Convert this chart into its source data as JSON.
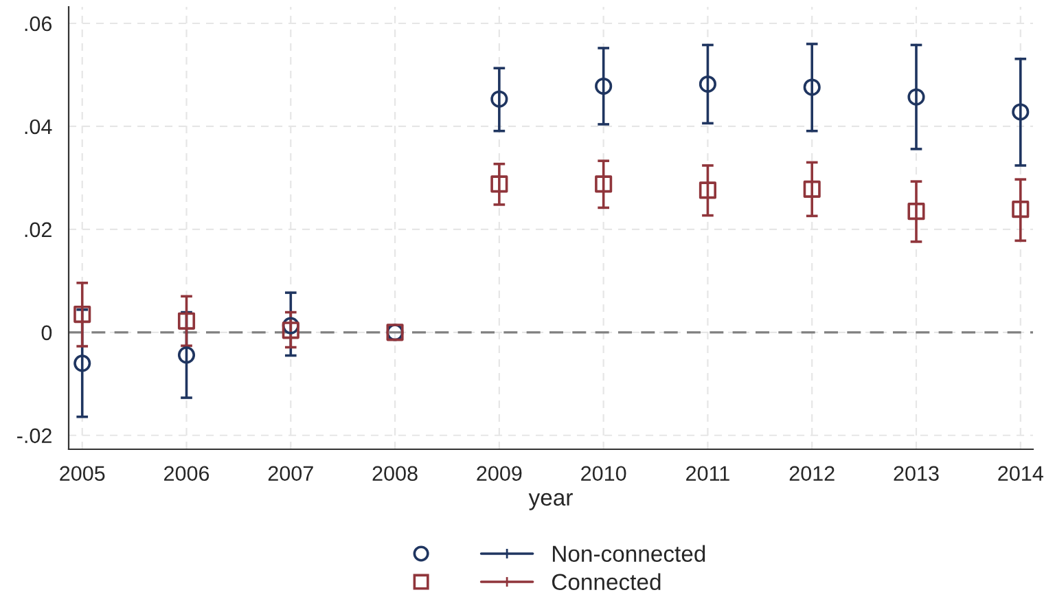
{
  "chart_data": {
    "type": "scatter",
    "xlabel": "year",
    "x": [
      2005,
      2006,
      2007,
      2008,
      2009,
      2010,
      2011,
      2012,
      2013,
      2014
    ],
    "series": [
      {
        "name": "Non-connected",
        "color": "#1f3560",
        "marker": "circle",
        "values": [
          -0.006,
          -0.0044,
          0.0013,
          0,
          0.0453,
          0.0478,
          0.0482,
          0.0476,
          0.0457,
          0.0428
        ],
        "errors": [
          [
            -0.0164,
            0.0044
          ],
          [
            -0.0127,
            0.0039
          ],
          [
            -0.0045,
            0.0077
          ],
          null,
          [
            0.0391,
            0.0513
          ],
          [
            0.0404,
            0.0552
          ],
          [
            0.0406,
            0.0558
          ],
          [
            0.0391,
            0.056
          ],
          [
            0.0356,
            0.0558
          ],
          [
            0.0324,
            0.0531
          ]
        ]
      },
      {
        "name": "Connected",
        "color": "#90353b",
        "marker": "square",
        "values": [
          0.0035,
          0.0022,
          0.0004,
          0,
          0.0288,
          0.0288,
          0.0276,
          0.0278,
          0.0235,
          0.0239
        ],
        "errors": [
          [
            -0.0027,
            0.0096
          ],
          [
            -0.0026,
            0.007
          ],
          [
            -0.0029,
            0.0039
          ],
          null,
          [
            0.0248,
            0.0327
          ],
          [
            0.0242,
            0.0333
          ],
          [
            0.0227,
            0.0324
          ],
          [
            0.0226,
            0.033
          ],
          [
            0.0176,
            0.0293
          ],
          [
            0.0178,
            0.0297
          ]
        ]
      }
    ],
    "xlim": [
      2004.87,
      2014.12
    ],
    "ylim": [
      -0.0227,
      0.0632
    ],
    "xticks": [
      2005,
      2006,
      2007,
      2008,
      2009,
      2010,
      2011,
      2012,
      2013,
      2014
    ],
    "yticks": [
      {
        "value": -0.02,
        "label": "-.02"
      },
      {
        "value": 0,
        "label": "0"
      },
      {
        "value": 0.02,
        "label": ".02"
      },
      {
        "value": 0.04,
        "label": ".04"
      },
      {
        "value": 0.06,
        "label": ".06"
      }
    ],
    "ref_lines": [
      {
        "axis": "y",
        "value": 0,
        "color": "#808080",
        "line_style": "dashed"
      }
    ],
    "grid": true,
    "legend": "bottom"
  }
}
